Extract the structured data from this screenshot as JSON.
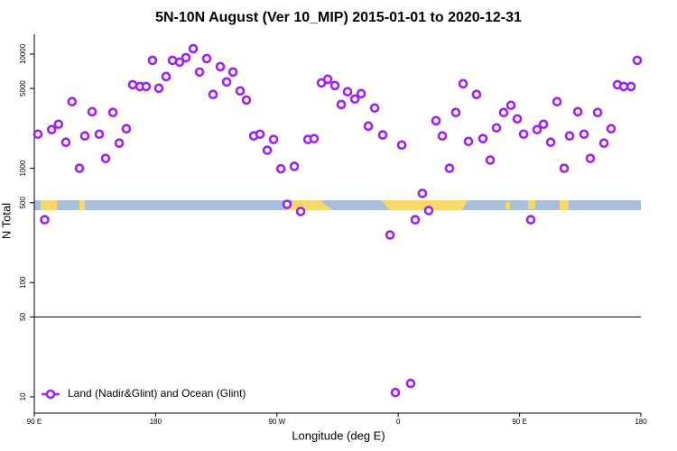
{
  "chart_data": {
    "type": "scatter",
    "log_y": true,
    "title": "5N-10N August (Ver 10_MIP)   2015-01-01 to 2020-12-31",
    "x_label": "Longitude (deg E)",
    "y_label": "N Total",
    "xlim": [
      90,
      540
    ],
    "xticks": [
      {
        "value": 90,
        "label": "90 E"
      },
      180,
      {
        "value": 270,
        "label": "90 W"
      },
      {
        "value": 360,
        "label": "0"
      },
      {
        "value": 450,
        "label": "90 E"
      },
      {
        "value": 540,
        "label": "180"
      }
    ],
    "ylim": [
      7.2,
      14900
    ],
    "yticks": [
      10,
      50,
      100,
      500,
      1000,
      5000,
      10000
    ],
    "reference_line": 50,
    "legend": "bottom-left",
    "x": [
      92.7,
      97.7,
      102.9,
      108,
      113.4,
      118,
      123.5,
      127.5,
      132.9,
      138.2,
      142.9,
      148.3,
      153,
      158.3,
      163,
      168.4,
      173,
      177.7,
      182.4,
      187.8,
      192.5,
      197.8,
      202.5,
      207.9,
      212.6,
      217.9,
      222.6,
      228,
      232.7,
      237.4,
      242.7,
      247.4,
      252.8,
      257.4,
      262.8,
      267.5,
      272.9,
      277.5,
      282.9,
      287.6,
      293,
      297.6,
      303,
      307.7,
      313,
      317.7,
      322.4,
      327.8,
      332.5,
      337.8,
      342.5,
      348.5,
      353.9,
      357.9,
      362.6,
      369.2,
      372.6,
      377.9,
      382.6,
      388,
      392.7,
      398,
      402.7,
      408.1,
      412.1,
      418.1,
      422.8,
      428.2,
      432.9,
      438.2,
      443.6,
      448.3,
      453,
      458.3,
      463,
      467.7,
      473.1,
      477.8,
      483.1,
      487.1,
      493.2,
      497.8,
      502.5,
      507.9,
      512.6,
      517.9,
      522.6,
      527.3,
      532.7,
      537.3
    ],
    "series": [
      {
        "name": "Land (Nadir&Glint) and Ocean (Glint)",
        "color": "#a020f0",
        "values": [
          1990,
          355,
          2180,
          2430,
          1690,
          3830,
          1000,
          1920,
          3130,
          1990,
          1220,
          3080,
          1660,
          2220,
          5390,
          5200,
          5200,
          8810,
          5020,
          6360,
          8810,
          8500,
          9300,
          11150,
          6960,
          9130,
          4430,
          7760,
          5700,
          6960,
          4760,
          3960,
          1920,
          1990,
          1440,
          1790,
          990,
          484,
          1040,
          419,
          1790,
          1820,
          5590,
          6020,
          5300,
          3620,
          4680,
          4040,
          4500,
          2340,
          3370,
          1960,
          261,
          10.9,
          1600,
          13.1,
          355,
          603,
          427,
          2610,
          1920,
          1000,
          3080,
          5500,
          1720,
          4430,
          1820,
          1180,
          2260,
          3080,
          3560,
          2710,
          1990,
          355,
          2180,
          2430,
          1690,
          3830,
          1000,
          1920,
          3130,
          1990,
          1220,
          3080,
          1660,
          2220,
          5390,
          5200,
          5200,
          8810
        ]
      }
    ]
  }
}
